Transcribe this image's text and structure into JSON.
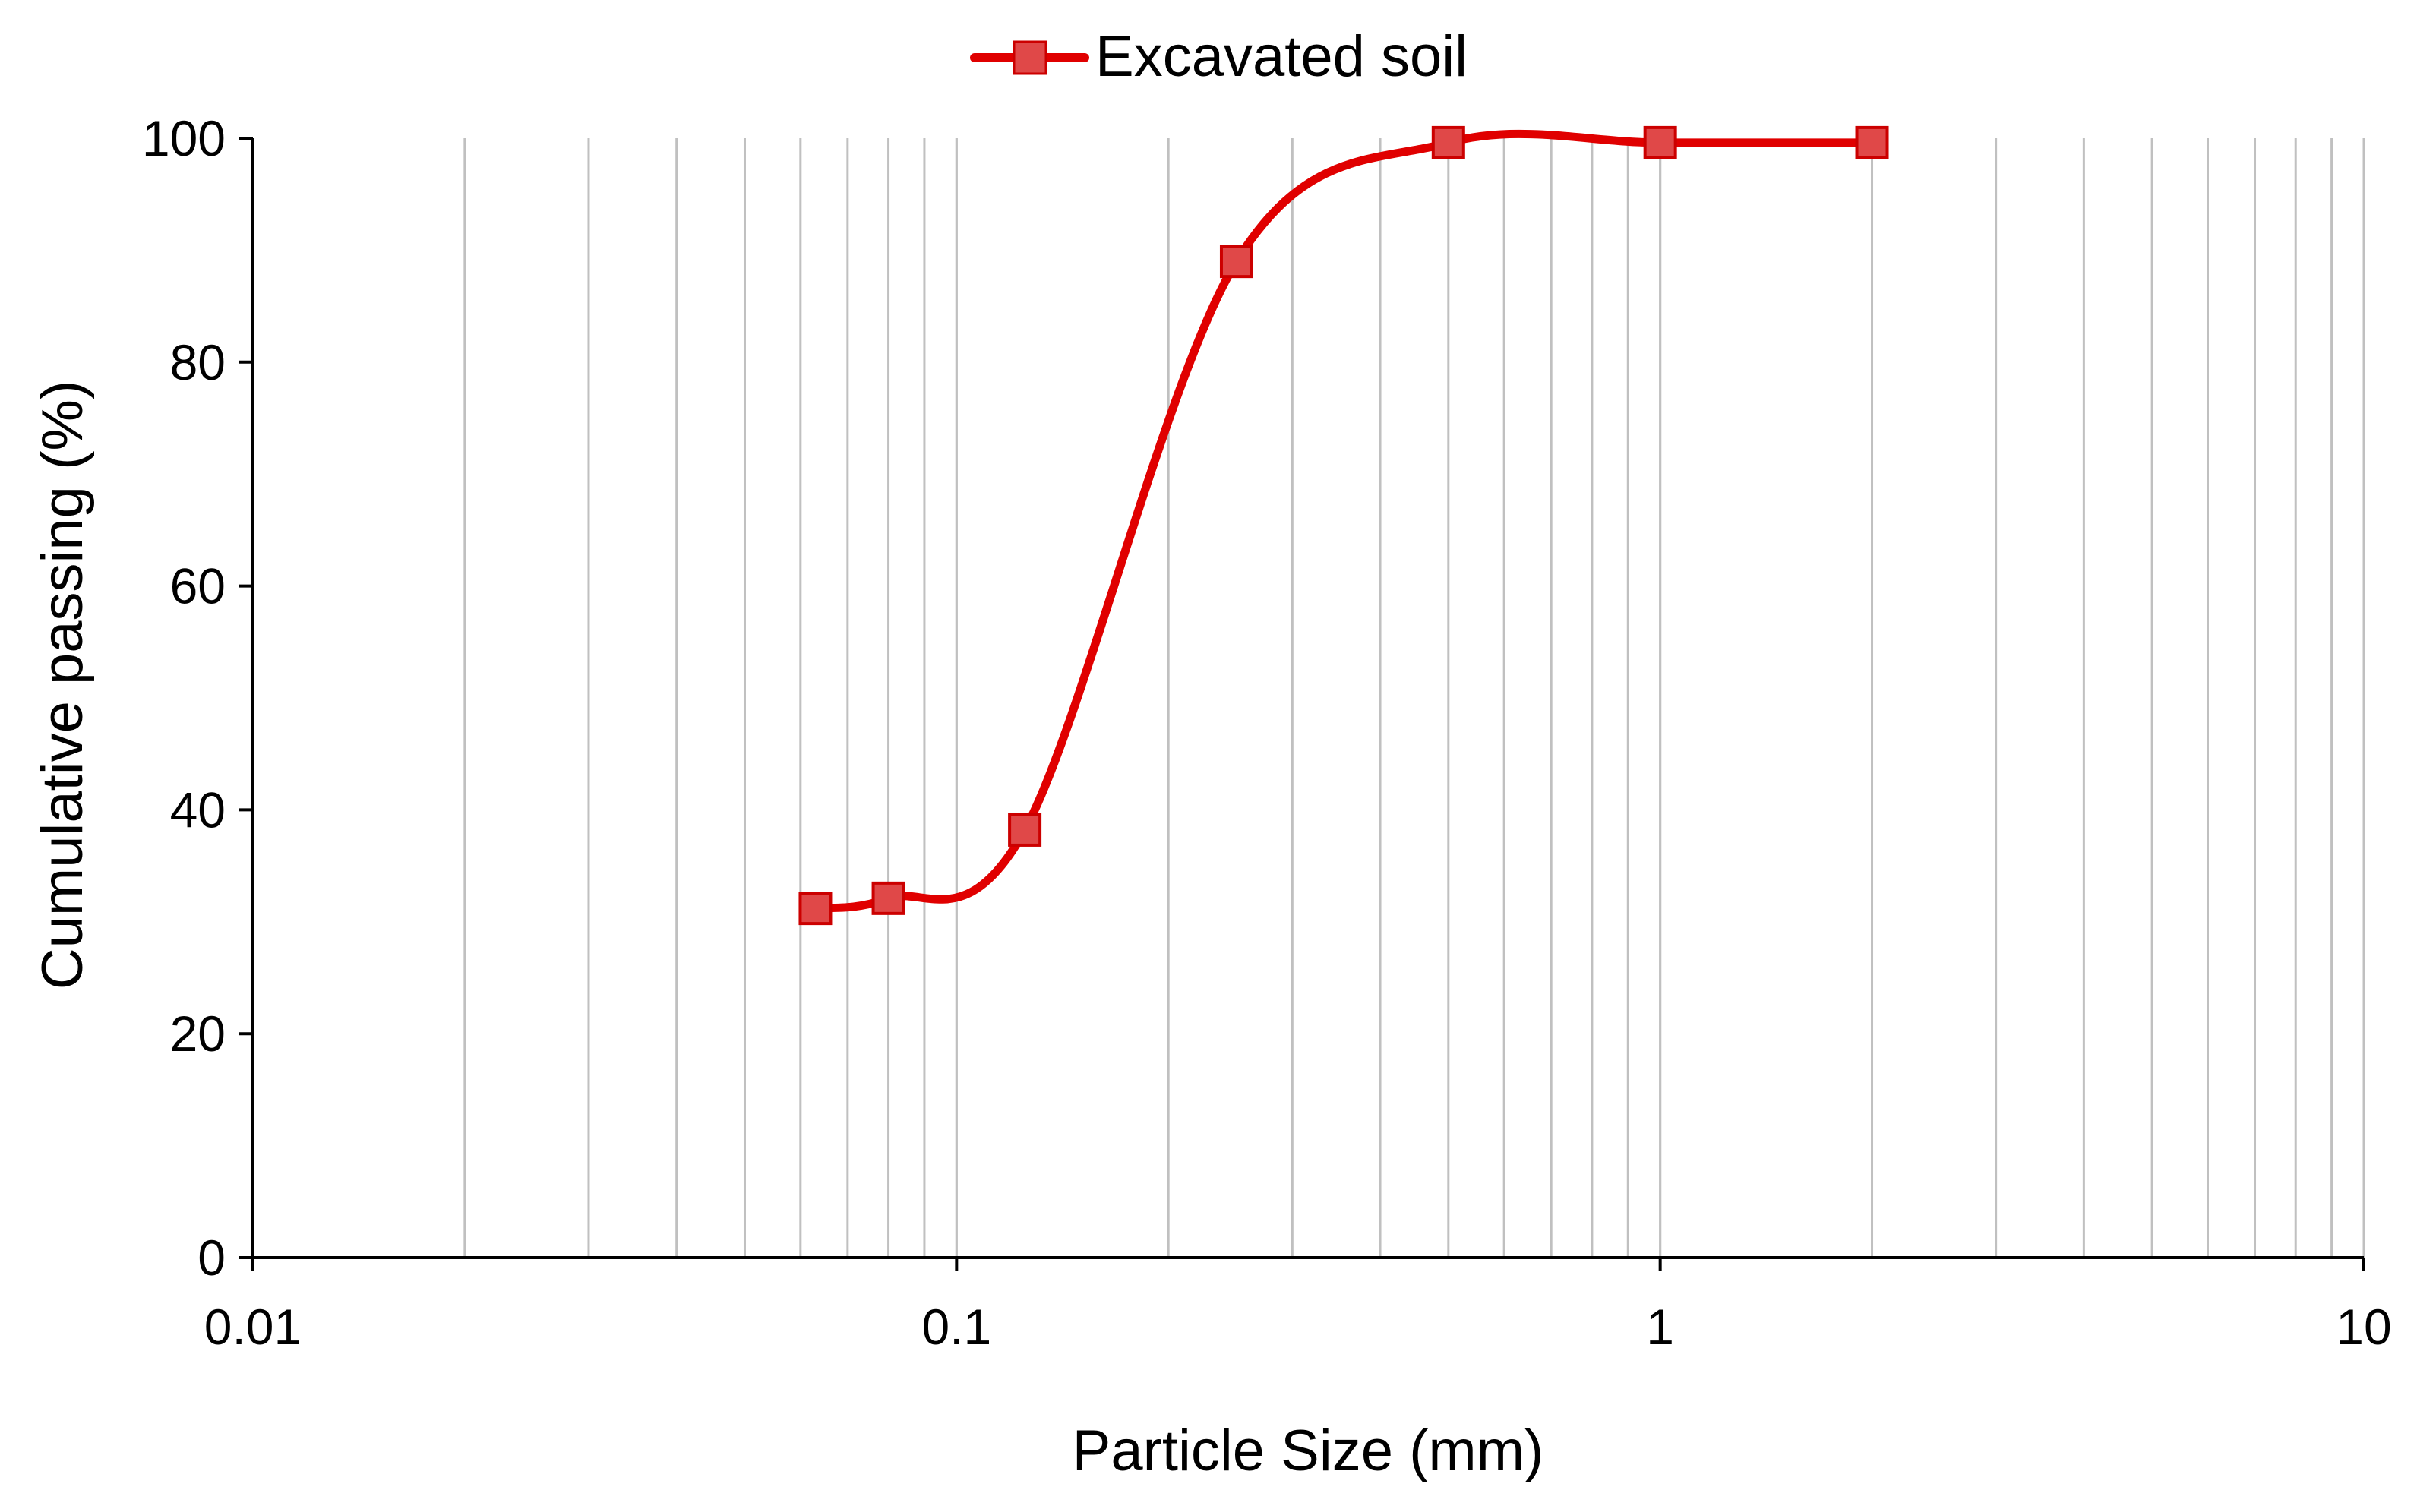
{
  "chart_data": {
    "type": "scatter",
    "xscale": "log",
    "xlim": [
      0.01,
      10
    ],
    "ylim": [
      0,
      100
    ],
    "xlabel": "Particle Size (mm)",
    "ylabel": "Cumulative passing (%)",
    "xticks": [
      0.01,
      0.1,
      1,
      10
    ],
    "xtick_labels": [
      "0.01",
      "0.1",
      "1",
      "10"
    ],
    "yticks": [
      0,
      20,
      40,
      60,
      80,
      100
    ],
    "ytick_labels": [
      "0",
      "20",
      "40",
      "60",
      "80",
      "100"
    ],
    "grid": {
      "vertical_minor_log": true,
      "horizontal": false
    },
    "legend": {
      "position": "top-center"
    },
    "series": [
      {
        "name": "Excavated soil",
        "line": "smooth",
        "marker": "square",
        "color": "#e00000",
        "marker_fill": "#e04848",
        "x": [
          0.063,
          0.08,
          0.125,
          0.25,
          0.5,
          1,
          2
        ],
        "y": [
          31.2,
          32.1,
          38.2,
          89,
          99.6,
          99.6,
          99.6
        ]
      }
    ]
  }
}
